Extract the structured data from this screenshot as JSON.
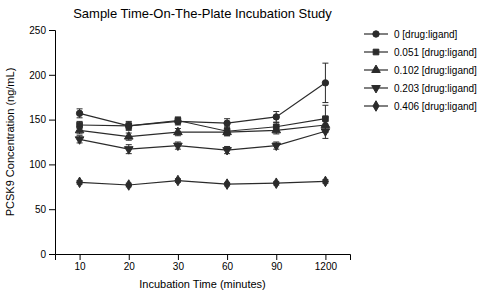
{
  "chart_data": {
    "type": "line",
    "title": "Sample Time-On-The-Plate Incubation Study",
    "x_label": "Incubation Time (minutes)",
    "y_label": "PCSK9 Concentration (ng/mL)",
    "categories": [
      "10",
      "20",
      "30",
      "60",
      "90",
      "1200"
    ],
    "series": [
      {
        "name": "0 [drug:ligand]",
        "color": "#2b2b2b",
        "marker": "circle",
        "values": [
          157,
          143,
          148,
          146,
          153,
          191
        ],
        "errors": [
          5,
          4,
          4,
          5,
          6,
          22
        ]
      },
      {
        "name": "0.051 [drug:ligand]",
        "color": "#2b2b2b",
        "marker": "square",
        "values": [
          144,
          143,
          149,
          137,
          142,
          151
        ],
        "errors": [
          4,
          5,
          4,
          5,
          5,
          15
        ]
      },
      {
        "name": "0.102 [drug:ligand]",
        "color": "#2b2b2b",
        "marker": "triangle-up",
        "values": [
          138,
          131,
          136,
          136,
          138,
          144
        ],
        "errors": [
          4,
          4,
          4,
          4,
          4,
          8
        ]
      },
      {
        "name": "0.203 [drug:ligand]",
        "color": "#2b2b2b",
        "marker": "triangle-down",
        "values": [
          128,
          117,
          121,
          116,
          121,
          137
        ],
        "errors": [
          4,
          5,
          4,
          4,
          4,
          8
        ]
      },
      {
        "name": "0.406 [drug:ligand]",
        "color": "#2b2b2b",
        "marker": "diamond",
        "values": [
          80,
          77,
          82,
          78,
          79,
          81
        ],
        "errors": [
          2,
          2,
          2,
          2,
          2,
          2
        ]
      }
    ],
    "ylim": [
      0,
      250
    ],
    "yticks": [
      0,
      50,
      100,
      150,
      200,
      250
    ],
    "grid": false,
    "legend": "right"
  }
}
